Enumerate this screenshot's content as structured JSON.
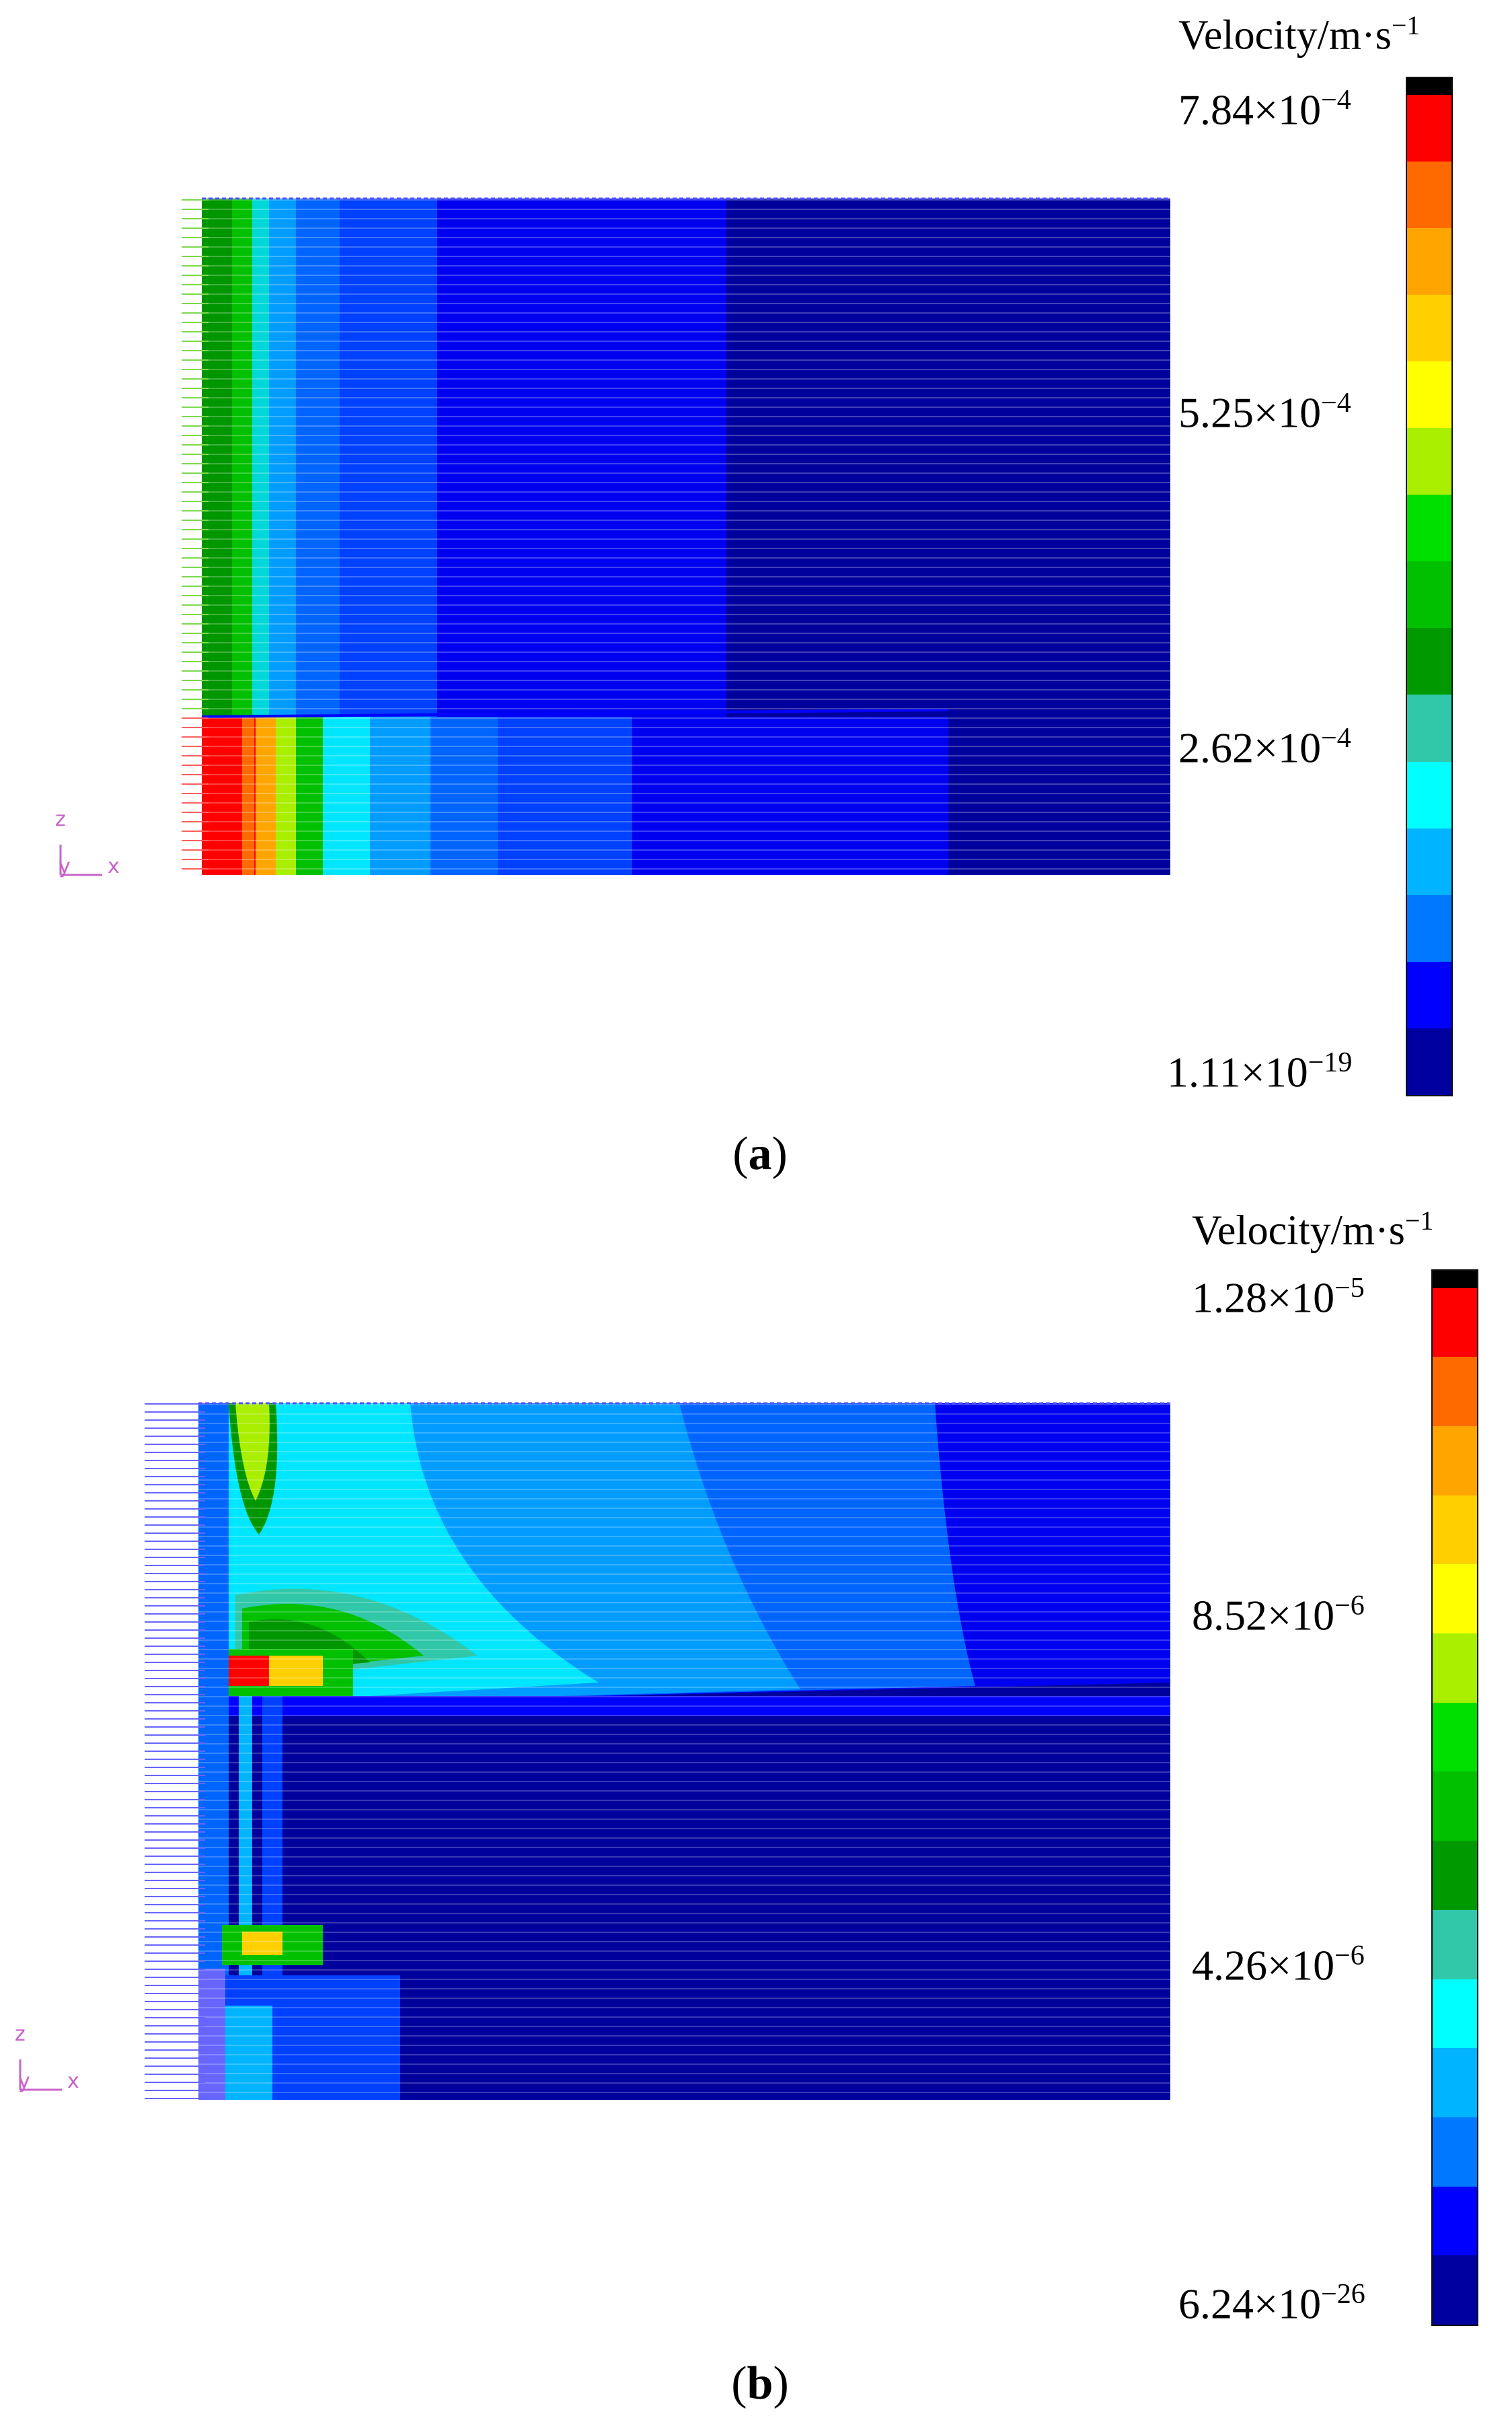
{
  "panels": [
    {
      "caption_open": "(",
      "caption_letter": "a",
      "caption_close": ")",
      "legend": {
        "title": "Velocity/m·s",
        "title_exp": "−1",
        "labels": [
          {
            "mant": "7.84×10",
            "exp": "−4"
          },
          {
            "mant": "5.25×10",
            "exp": "−4"
          },
          {
            "mant": "2.62×10",
            "exp": "−4"
          },
          {
            "mant": "1.11×10",
            "exp": "−19"
          }
        ]
      },
      "axis_labels": {
        "z": "z",
        "y": "y",
        "x": "x"
      }
    },
    {
      "caption_open": "(",
      "caption_letter": "b",
      "caption_close": ")",
      "legend": {
        "title": "Velocity/m·s",
        "title_exp": "−1",
        "labels": [
          {
            "mant": "1.28×10",
            "exp": "−5"
          },
          {
            "mant": "8.52×10",
            "exp": "−6"
          },
          {
            "mant": "4.26×10",
            "exp": "−6"
          },
          {
            "mant": "6.24×10",
            "exp": "−26"
          }
        ]
      },
      "axis_labels": {
        "z": "z",
        "y": "y",
        "x": "x"
      }
    }
  ],
  "colors": {
    "colorbar": [
      "#000000",
      "#ff0000",
      "#ff6a00",
      "#ffa500",
      "#ffd000",
      "#ffff00",
      "#aaee00",
      "#00e000",
      "#00c000",
      "#009a00",
      "#30c8a8",
      "#00ffff",
      "#00b4ff",
      "#0078ff",
      "#0000ff",
      "#0000a0"
    ],
    "field_deep": "#00009c",
    "field_blue": "#0000f0",
    "field_mid": "#0064ff",
    "field_light": "#009cff",
    "field_cyan": "#00e6ff",
    "field_green": "#00c000",
    "field_dkgreen": "#009600",
    "field_yellow": "#ffff00",
    "field_red": "#ff0000"
  }
}
